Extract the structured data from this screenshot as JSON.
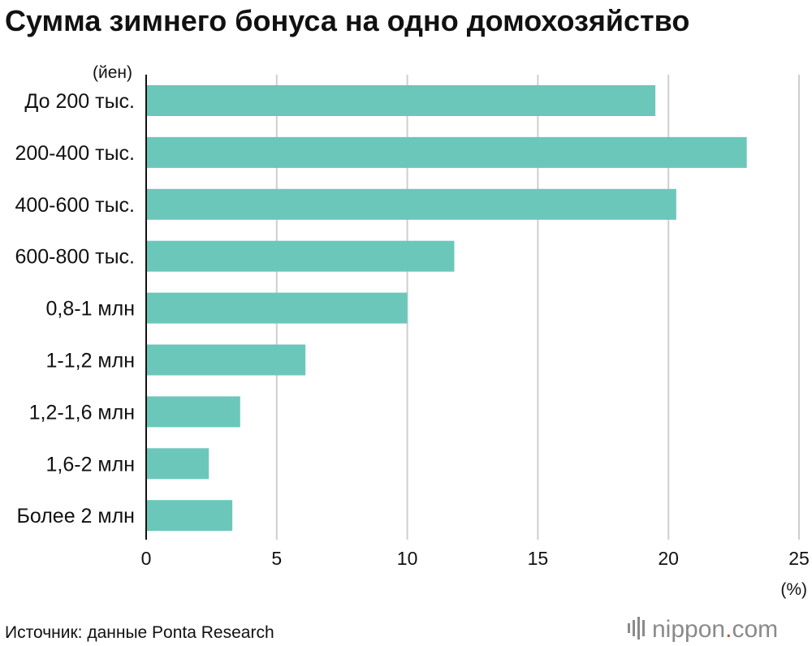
{
  "chart_data": {
    "type": "bar",
    "orientation": "horizontal",
    "title": "Сумма зимнего бонуса на одно домохозяйство",
    "y_unit": "(йен)",
    "x_unit": "(%)",
    "categories": [
      "До 200 тыс.",
      "200-400 тыс.",
      "400-600 тыс.",
      "600-800 тыс.",
      "0,8-1 млн",
      "1-1,2 млн",
      "1,2-1,6 млн",
      "1,6-2 млн",
      "Более 2 млн"
    ],
    "values": [
      19.5,
      23.0,
      20.3,
      11.8,
      10.0,
      6.1,
      3.6,
      2.4,
      3.3
    ],
    "xlim": [
      0,
      25
    ],
    "x_ticks": [
      "0",
      "5",
      "10",
      "15",
      "20",
      "25"
    ],
    "grid": true,
    "bar_color": "#6cc7bb"
  },
  "footer": {
    "source": "Источник: данные Ponta Research",
    "logo_main": "nippon",
    "logo_dot": ".",
    "logo_suffix": "com"
  }
}
